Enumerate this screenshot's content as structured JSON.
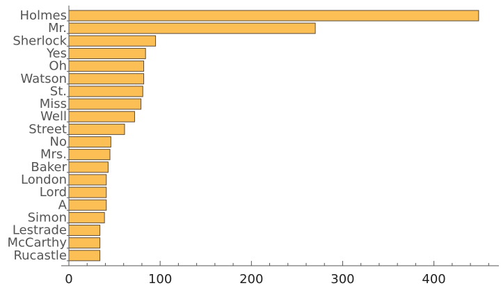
{
  "chart_data": {
    "type": "bar",
    "orientation": "horizontal",
    "categories": [
      "Holmes",
      "Mr.",
      "Sherlock",
      "Yes",
      "Oh",
      "Watson",
      "St.",
      "Miss",
      "Well",
      "Street",
      "No",
      "Mrs.",
      "Baker",
      "London",
      "Lord",
      "A",
      "Simon",
      "Lestrade",
      "McCarthy",
      "Rucastle"
    ],
    "values": [
      449,
      270,
      95,
      84,
      82,
      82,
      81,
      79,
      72,
      61,
      46,
      45,
      43,
      41,
      41,
      41,
      39,
      34,
      34,
      34
    ],
    "xlim": [
      0,
      460
    ],
    "xticks": [
      0,
      100,
      200,
      300,
      400
    ],
    "xtick_labels": [
      "0",
      "100",
      "200",
      "300",
      "400"
    ],
    "title": "",
    "xlabel": "",
    "ylabel": "",
    "grid": false,
    "bar_color": "#fcbf55",
    "bar_edge_color": "#5a4a3a"
  }
}
